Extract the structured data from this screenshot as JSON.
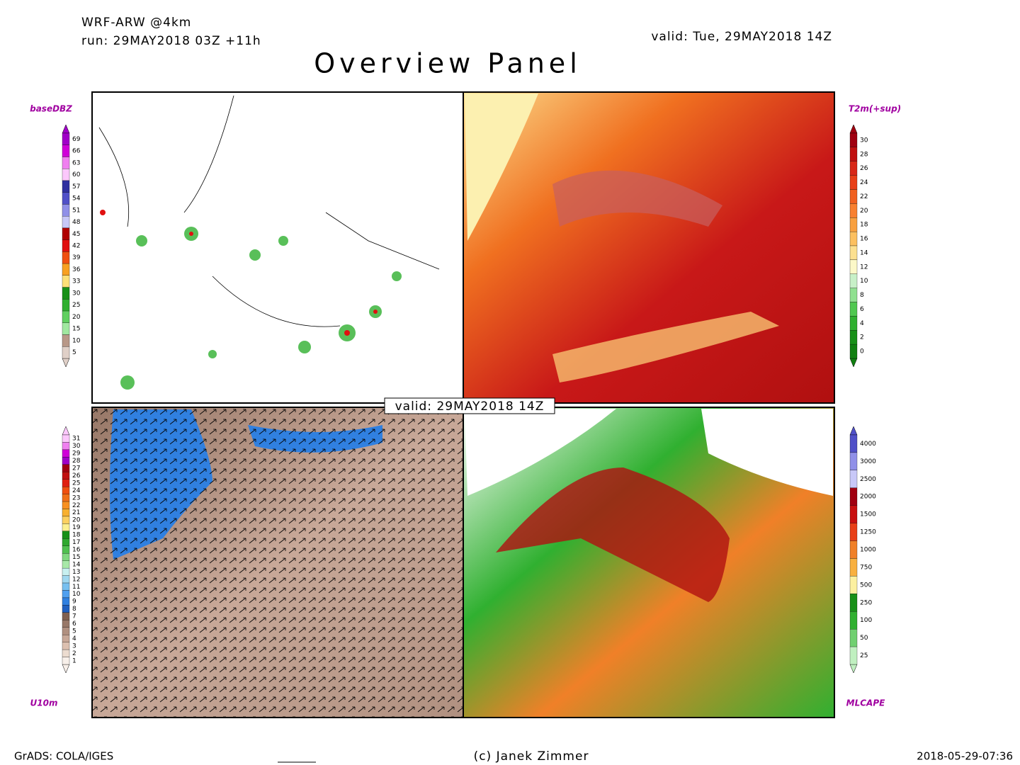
{
  "header": {
    "model": "WRF-ARW @4km",
    "run": "run: 29MAY2018 03Z +11h",
    "valid": "valid: Tue, 29MAY2018 14Z",
    "title": "Overview Panel",
    "center_label": "valid: 29MAY2018 14Z"
  },
  "footer": {
    "left": "GrADS: COLA/IGES",
    "center": "(c) Janek Zimmer",
    "right": "2018-05-29-07:36"
  },
  "panels": [
    {
      "name": "baseDBZ",
      "labels": [
        69,
        66,
        63,
        60,
        57,
        54,
        51,
        48,
        45,
        42,
        39,
        36,
        33,
        30,
        25,
        20,
        15,
        10,
        5
      ],
      "colors": [
        "#a000c8",
        "#d000d8",
        "#f080f0",
        "#fcc8fc",
        "#3030a0",
        "#5050c8",
        "#9090e8",
        "#c8c8f8",
        "#b00000",
        "#e01010",
        "#f05010",
        "#f8a020",
        "#fce078",
        "#189018",
        "#30b030",
        "#60d060",
        "#a0e8a0",
        "#b89888",
        "#e0d0c8"
      ]
    },
    {
      "name": "T2m(+sup)",
      "labels": [
        30,
        28,
        26,
        24,
        22,
        20,
        18,
        16,
        14,
        12,
        10,
        8,
        6,
        4,
        2,
        0
      ],
      "colors": [
        "#a00010",
        "#c01010",
        "#d82818",
        "#e84018",
        "#f06020",
        "#f88030",
        "#f8a040",
        "#fcc060",
        "#fce090",
        "#fcf8c8",
        "#c8f0c8",
        "#90e090",
        "#50c850",
        "#30b030",
        "#189018",
        "#108010"
      ]
    },
    {
      "name": "U10m",
      "labels": [
        31,
        30,
        29,
        28,
        27,
        26,
        25,
        24,
        23,
        22,
        21,
        20,
        19,
        18,
        17,
        16,
        15,
        14,
        13,
        12,
        11,
        10,
        9,
        8,
        7,
        6,
        5,
        4,
        3,
        2,
        1
      ],
      "colors": [
        "#fcc8fc",
        "#f080f0",
        "#d000d8",
        "#a000c8",
        "#a00010",
        "#c01010",
        "#e02010",
        "#f05010",
        "#f07018",
        "#f89020",
        "#f8b030",
        "#fcd060",
        "#fcf090",
        "#189018",
        "#30a830",
        "#50c050",
        "#80d880",
        "#a8e8a8",
        "#c8f0f0",
        "#a0d8f0",
        "#78c0f0",
        "#50a0f0",
        "#3080e0",
        "#2060c0",
        "#806050",
        "#987868",
        "#b09080",
        "#c8a898",
        "#dcc0b0",
        "#ecdcd0",
        "#f8f0ea"
      ]
    },
    {
      "name": "MLCAPE",
      "labels": [
        4000,
        3000,
        2500,
        2000,
        1500,
        1250,
        1000,
        750,
        500,
        250,
        100,
        50,
        25
      ],
      "colors": [
        "#5050c8",
        "#9090e8",
        "#c8c8f8",
        "#a00010",
        "#c81010",
        "#e84018",
        "#f08028",
        "#f8b040",
        "#fcf0a0",
        "#189018",
        "#30b030",
        "#70d070",
        "#c0f0c0"
      ]
    }
  ]
}
